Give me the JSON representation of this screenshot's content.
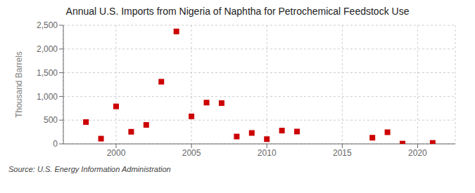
{
  "chart_data": {
    "type": "scatter",
    "title": "Annual U.S. Imports from Nigeria of Naphtha for Petrochemical Feedstock Use",
    "ylabel": "Thousand Barrels",
    "annotations": [
      "Source: U.S. Energy Information Administration"
    ],
    "x": [
      1998,
      1999,
      2000,
      2001,
      2002,
      2003,
      2004,
      2005,
      2006,
      2007,
      2008,
      2009,
      2010,
      2011,
      2012,
      2017,
      2018,
      2019,
      2021
    ],
    "values": [
      460,
      110,
      790,
      255,
      400,
      1310,
      2370,
      580,
      870,
      860,
      155,
      230,
      100,
      280,
      260,
      130,
      245,
      5,
      20
    ],
    "color": "#cc0000",
    "marker": "square",
    "xlim": [
      1996.5,
      2022.5
    ],
    "xticks": [
      2000,
      2005,
      2010,
      2015,
      2020
    ],
    "ylim": [
      0,
      2500
    ],
    "yticks": [
      0,
      500,
      {
        "value": 1000,
        "label": "1,000"
      },
      {
        "value": 1500,
        "label": "1,500"
      },
      {
        "value": 2000,
        "label": "2,000"
      },
      {
        "value": 2500,
        "label": "2,500"
      }
    ],
    "grid": true
  }
}
